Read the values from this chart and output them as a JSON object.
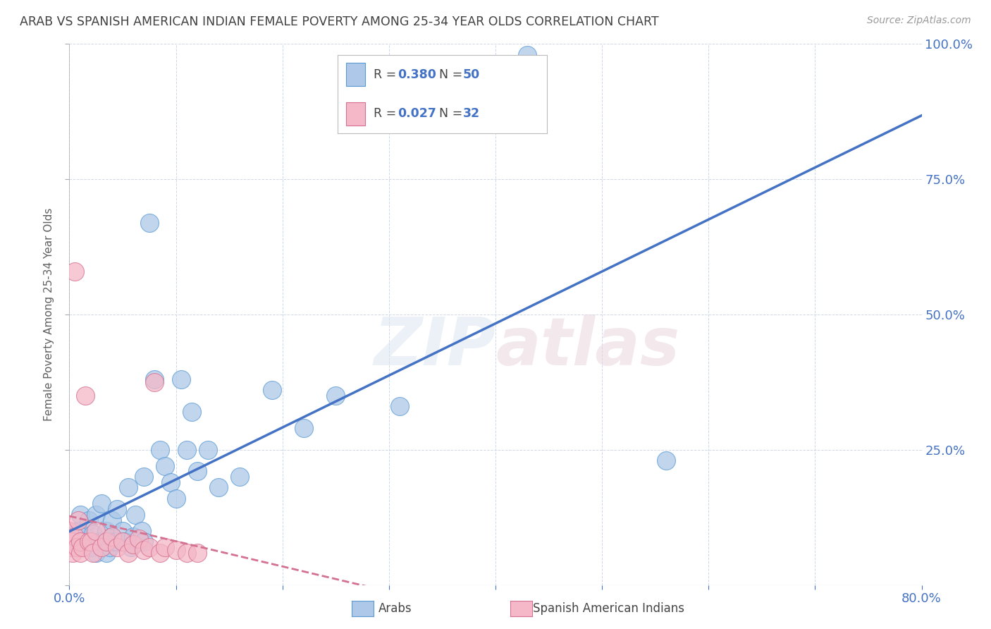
{
  "title": "ARAB VS SPANISH AMERICAN INDIAN FEMALE POVERTY AMONG 25-34 YEAR OLDS CORRELATION CHART",
  "source": "Source: ZipAtlas.com",
  "ylabel": "Female Poverty Among 25-34 Year Olds",
  "xlim": [
    0.0,
    0.8
  ],
  "ylim": [
    0.0,
    1.0
  ],
  "xtick_positions": [
    0.0,
    0.1,
    0.2,
    0.3,
    0.4,
    0.5,
    0.6,
    0.7,
    0.8
  ],
  "xtick_labels": [
    "0.0%",
    "",
    "",
    "",
    "",
    "",
    "",
    "",
    "80.0%"
  ],
  "ytick_positions": [
    0.0,
    0.25,
    0.5,
    0.75,
    1.0
  ],
  "ytick_labels": [
    "",
    "25.0%",
    "50.0%",
    "75.0%",
    "100.0%"
  ],
  "watermark_zip": "ZIP",
  "watermark_atlas": "atlas",
  "arab_R": "0.380",
  "arab_N": "50",
  "sai_R": "0.027",
  "sai_N": "32",
  "arab_color": "#adc8e8",
  "arab_edge_color": "#5b9bd5",
  "arab_line_color": "#4472c4",
  "sai_color": "#f4b8c8",
  "sai_edge_color": "#d47090",
  "sai_line_color": "#d47090",
  "legend_label_arab": "Arabs",
  "legend_label_sai": "Spanish American Indians",
  "arab_x": [
    0.005,
    0.008,
    0.01,
    0.012,
    0.015,
    0.018,
    0.02,
    0.022,
    0.025,
    0.025,
    0.028,
    0.03,
    0.032,
    0.035,
    0.035,
    0.038,
    0.04,
    0.04,
    0.042,
    0.045,
    0.045,
    0.05,
    0.052,
    0.055,
    0.058,
    0.06,
    0.062,
    0.065,
    0.068,
    0.07,
    0.07,
    0.075,
    0.08,
    0.085,
    0.09,
    0.095,
    0.1,
    0.105,
    0.11,
    0.115,
    0.12,
    0.13,
    0.14,
    0.16,
    0.19,
    0.22,
    0.25,
    0.31,
    0.43,
    0.56
  ],
  "arab_y": [
    0.08,
    0.1,
    0.13,
    0.08,
    0.09,
    0.12,
    0.07,
    0.095,
    0.06,
    0.13,
    0.08,
    0.15,
    0.08,
    0.06,
    0.1,
    0.07,
    0.09,
    0.12,
    0.08,
    0.14,
    0.08,
    0.1,
    0.08,
    0.18,
    0.07,
    0.09,
    0.13,
    0.08,
    0.1,
    0.08,
    0.2,
    0.67,
    0.38,
    0.25,
    0.22,
    0.19,
    0.16,
    0.38,
    0.25,
    0.32,
    0.21,
    0.25,
    0.18,
    0.2,
    0.36,
    0.29,
    0.35,
    0.33,
    0.98,
    0.23
  ],
  "sai_x": [
    0.0,
    0.0,
    0.002,
    0.003,
    0.005,
    0.005,
    0.007,
    0.008,
    0.01,
    0.01,
    0.012,
    0.015,
    0.018,
    0.02,
    0.022,
    0.025,
    0.03,
    0.035,
    0.04,
    0.045,
    0.05,
    0.055,
    0.06,
    0.065,
    0.07,
    0.075,
    0.08,
    0.085,
    0.09,
    0.1,
    0.11,
    0.12
  ],
  "sai_y": [
    0.07,
    0.1,
    0.08,
    0.06,
    0.58,
    0.09,
    0.07,
    0.12,
    0.06,
    0.08,
    0.07,
    0.35,
    0.08,
    0.08,
    0.06,
    0.1,
    0.07,
    0.08,
    0.09,
    0.07,
    0.08,
    0.06,
    0.075,
    0.085,
    0.065,
    0.07,
    0.375,
    0.06,
    0.07,
    0.065,
    0.06,
    0.06
  ],
  "background_color": "#ffffff",
  "grid_color": "#c8d4e8",
  "title_color": "#404040",
  "axis_label_color": "#606060",
  "right_tick_color": "#4472c4"
}
